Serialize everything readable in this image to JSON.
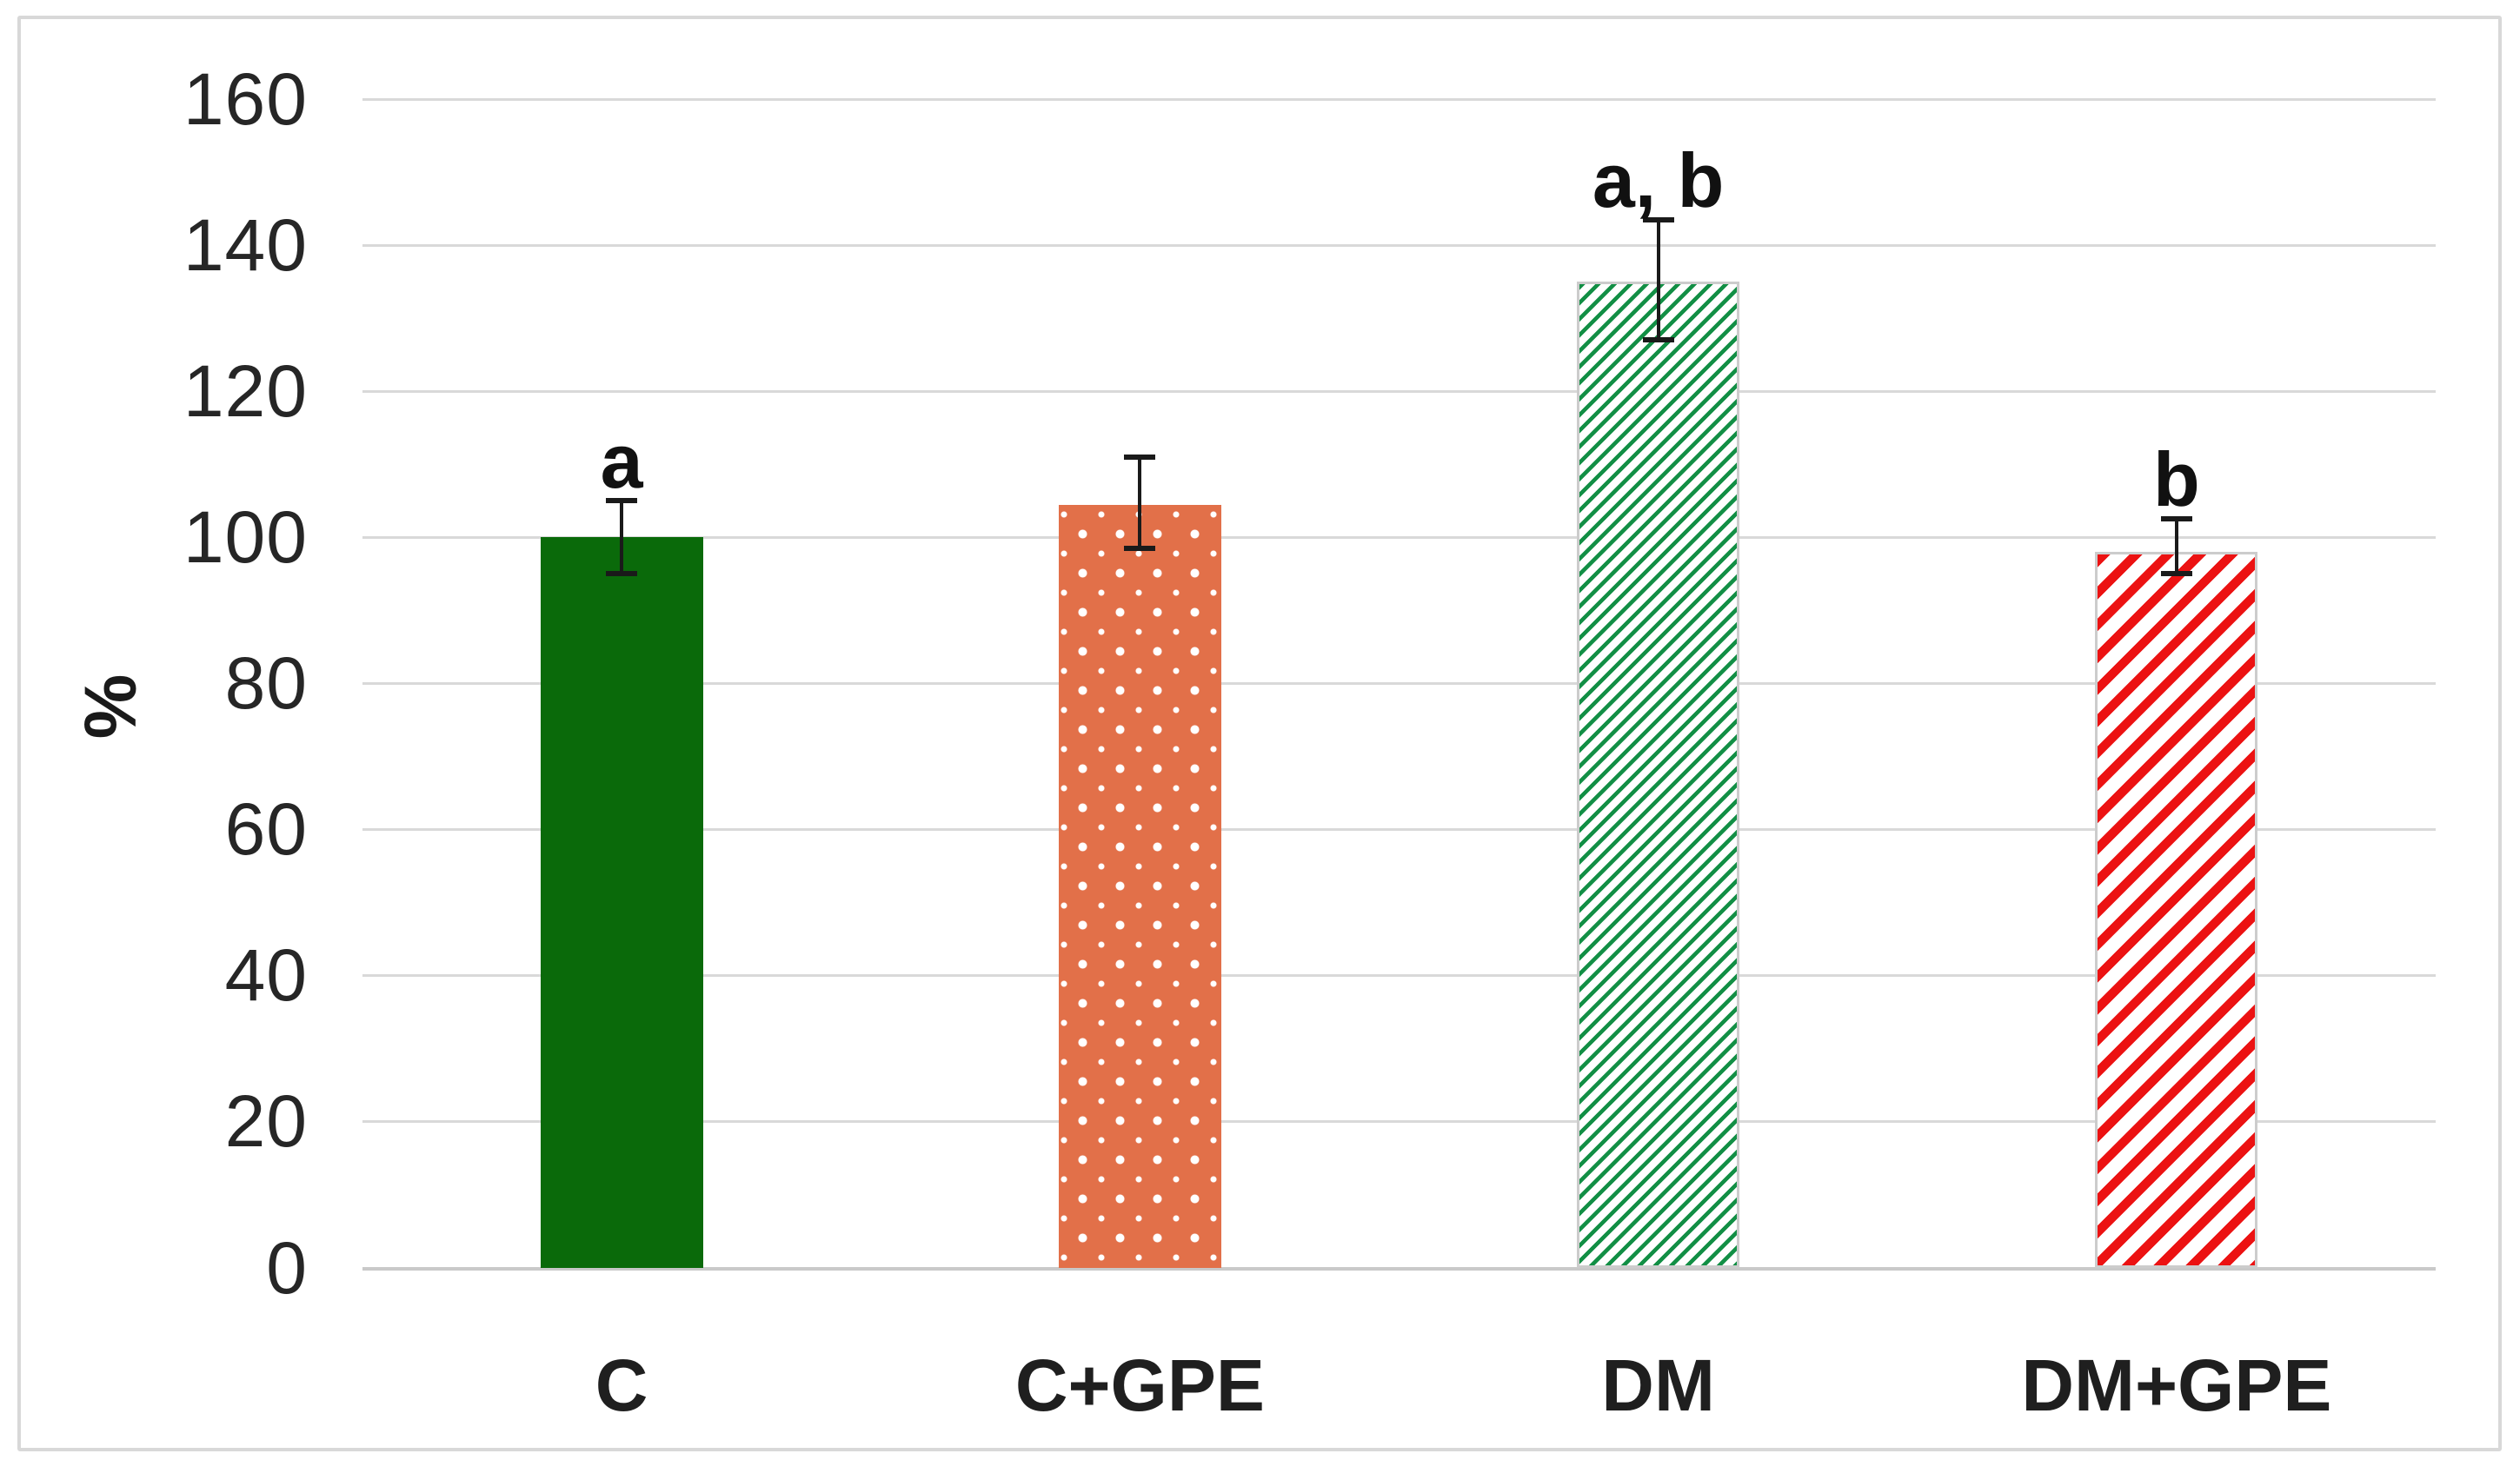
{
  "frame": {
    "background": "#FFFFFF",
    "border_color": "#D8D8D8"
  },
  "chart_data": {
    "type": "bar",
    "title": "",
    "xlabel": "",
    "ylabel": "%",
    "ylim": [
      0,
      160
    ],
    "yticks": [
      0,
      20,
      40,
      60,
      80,
      100,
      120,
      140,
      160
    ],
    "grid": true,
    "gridline_color": "#D9D9D9",
    "axis_line_color": "#C9C9C9",
    "legend": "none",
    "categories": [
      "C",
      "C+GPE",
      "DM",
      "DM+GPE"
    ],
    "values": [
      100,
      104.5,
      135,
      98
    ],
    "error_up": [
      5,
      6.5,
      8.5,
      4.5
    ],
    "error_down": [
      5,
      6,
      8,
      3
    ],
    "significance_labels": [
      "a",
      "",
      "a, b",
      "b"
    ],
    "error_bar_color": "#1A1A1A",
    "bar_styles": [
      {
        "name": "solid-green",
        "fill": "#0A6A0A",
        "pattern": "solid"
      },
      {
        "name": "orange-white-dots",
        "fill": "#E27049",
        "pattern": "white dots on orange"
      },
      {
        "name": "white-green-diagonal-hatch",
        "fill": "#128F45",
        "pattern": "green diagonal hatch on white"
      },
      {
        "name": "white-red-diagonal-stripes",
        "fill": "#EC1212",
        "pattern": "red diagonal stripes on white"
      }
    ]
  }
}
